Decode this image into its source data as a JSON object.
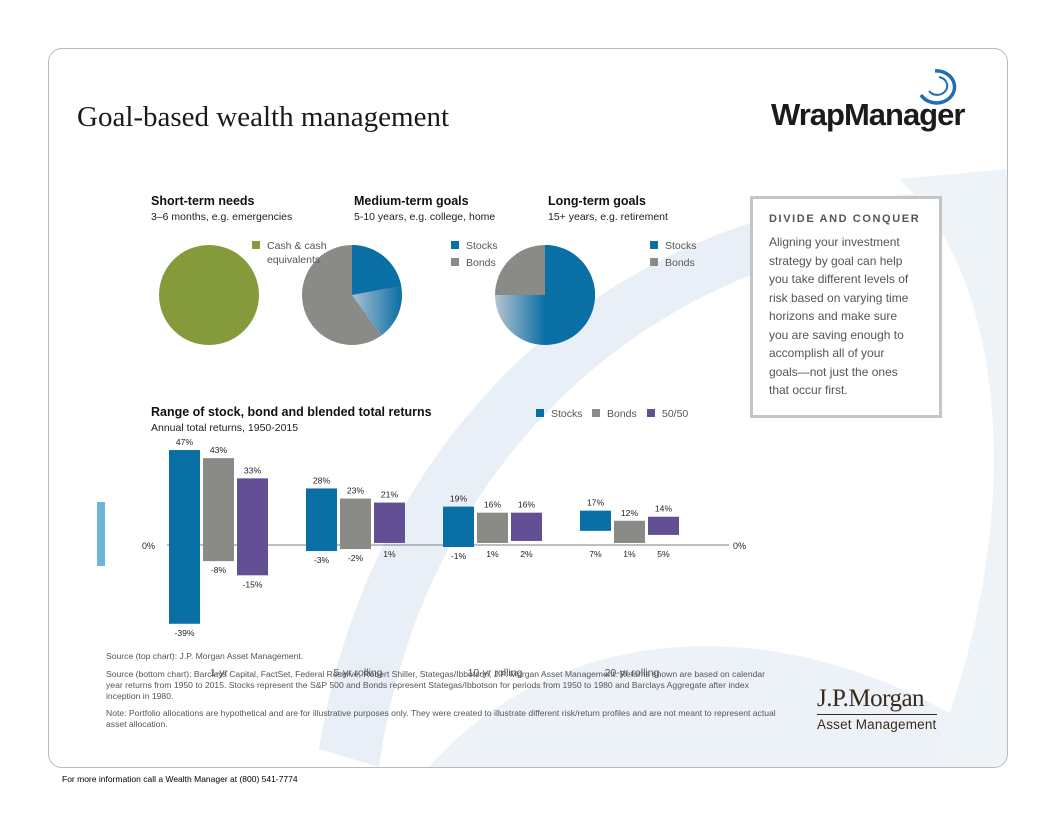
{
  "page": {
    "title": "Goal-based wealth management",
    "brand": "WrapManager",
    "footer": "For more information call a Wealth Manager at (800) 541-7774"
  },
  "colors": {
    "stocks": "#0a6fa5",
    "bonds": "#8a8a86",
    "blend": "#634f93",
    "cash": "#859a3a",
    "brand_blue": "#1f6db5"
  },
  "pies": [
    {
      "heading": "Short-term needs",
      "sub": "3–6 months, e.g. emergencies",
      "legend": [
        {
          "label": "Cash & cash",
          "label2": "equivalents",
          "color": "#859a3a"
        }
      ],
      "slices": [
        {
          "name": "Cash & cash equivalents",
          "value": 100,
          "color": "#859a3a"
        }
      ]
    },
    {
      "heading": "Medium-term goals",
      "sub": "5-10 years, e.g. college, home",
      "legend": [
        {
          "label": "Stocks",
          "color": "#0a6fa5"
        },
        {
          "label": "Bonds",
          "color": "#8a8a86"
        }
      ],
      "slices": [
        {
          "name": "Stocks",
          "value": 40,
          "color": "#0a6fa5"
        },
        {
          "name": "Bonds",
          "value": 60,
          "color": "#8a8a86"
        }
      ]
    },
    {
      "heading": "Long-term goals",
      "sub": "15+ years, e.g. retirement",
      "legend": [
        {
          "label": "Stocks",
          "color": "#0a6fa5"
        },
        {
          "label": "Bonds",
          "color": "#8a8a86"
        }
      ],
      "slices": [
        {
          "name": "Stocks",
          "value": 75,
          "color": "#0a6fa5"
        },
        {
          "name": "Bonds",
          "value": 25,
          "color": "#8a8a86"
        }
      ]
    }
  ],
  "sidebar": {
    "heading": "DIVIDE AND CONQUER",
    "lines": [
      "Aligning your investment",
      "strategy by goal can help",
      "you take different levels of",
      "risk based on varying time",
      "horizons and make sure",
      "you are saving enough to",
      "accomplish all of your",
      "goals—not just the ones",
      "that occur first."
    ]
  },
  "range_chart": {
    "title": "Range of stock, bond and blended total returns",
    "subtitle": "Annual total returns, 1950-2015",
    "legend": [
      "Stocks",
      "Bonds",
      "50/50"
    ]
  },
  "chart_data": {
    "type": "bar",
    "subtype": "floating-range",
    "categories": [
      "1-yr",
      "5-yr rolling",
      "10-yr rolling",
      "20-yr rolling"
    ],
    "series": [
      {
        "name": "Stocks",
        "max": [
          47,
          28,
          19,
          17
        ],
        "min": [
          -39,
          -3,
          -1,
          7
        ],
        "max_labels": [
          "47%",
          "28%",
          "19%",
          "17%"
        ],
        "min_labels": [
          "-39%",
          "-3%",
          "-1%",
          "7%"
        ]
      },
      {
        "name": "Bonds",
        "max": [
          43,
          23,
          16,
          12
        ],
        "min": [
          -8,
          -2,
          1,
          1
        ],
        "max_labels": [
          "43%",
          "23%",
          "16%",
          "12%"
        ],
        "min_labels": [
          "-8%",
          "-2%",
          "1%",
          "1%"
        ]
      },
      {
        "name": "50/50",
        "max": [
          33,
          21,
          16,
          14
        ],
        "min": [
          -15,
          1,
          2,
          5
        ],
        "max_labels": [
          "33%",
          "21%",
          "16%",
          "14%"
        ],
        "min_labels": [
          "-15%",
          "1%",
          "2%",
          "5%"
        ]
      }
    ],
    "zero_label_left": "0%",
    "zero_label_right": "0%",
    "ylim": [
      -39,
      47
    ]
  },
  "sources": {
    "top": "Source (top chart): J.P. Morgan Asset Management.",
    "bottom": "Source (bottom chart): Barclays Capital, FactSet, Federal Reserve, Robert Shiller, Stategas/Ibbotson, J.P. Morgan Asset Management. Returns shown are based on calendar year returns from 1950 to 2015. Stocks represent the S&P 500 and Bonds represent Stategas/Ibbotson for periods from 1950 to 1980 and Barclays Aggregate after index inception in 1980.",
    "note": "Note: Portfolio allocations are hypothetical and are for illustrative purposes only. They were created to illustrate different risk/return profiles and are not meant to represent actual asset allocation."
  },
  "jpm": {
    "name": "J.P.Morgan",
    "sub": "Asset Management"
  }
}
